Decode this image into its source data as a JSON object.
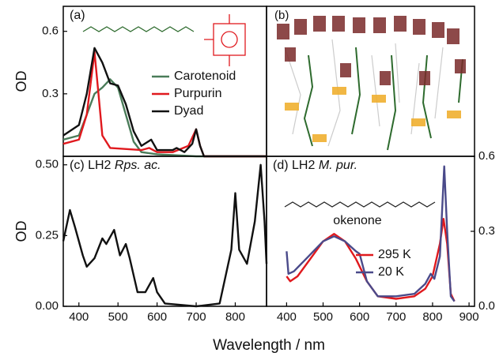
{
  "chart_data": [
    {
      "type": "line",
      "panel_label": "(a)",
      "y_label": "OD",
      "xlim": [
        360,
        880
      ],
      "ylim": [
        0,
        0.72
      ],
      "yticks": [
        0.3,
        0.6
      ],
      "legend": "center-right",
      "series": [
        {
          "name": "Carotenoid",
          "color": "#4a7c59",
          "x": [
            360,
            400,
            420,
            440,
            460,
            480,
            500,
            520,
            540,
            560,
            600,
            700,
            880
          ],
          "values": [
            0.08,
            0.1,
            0.2,
            0.3,
            0.33,
            0.37,
            0.33,
            0.2,
            0.07,
            0.02,
            0.01,
            0.0,
            0.0
          ]
        },
        {
          "name": "Purpurin",
          "color": "#e0191e",
          "x": [
            360,
            400,
            420,
            440,
            450,
            460,
            480,
            560,
            580,
            600,
            640,
            680,
            700,
            710,
            720,
            880
          ],
          "values": [
            0.06,
            0.08,
            0.2,
            0.5,
            0.3,
            0.1,
            0.04,
            0.03,
            0.04,
            0.02,
            0.02,
            0.05,
            0.13,
            0.05,
            0.0,
            0.0
          ]
        },
        {
          "name": "Dyad",
          "color": "#111111",
          "x": [
            360,
            400,
            420,
            440,
            460,
            480,
            500,
            520,
            540,
            560,
            585,
            600,
            640,
            650,
            670,
            690,
            700,
            710,
            720,
            880
          ],
          "values": [
            0.1,
            0.15,
            0.3,
            0.52,
            0.45,
            0.35,
            0.34,
            0.25,
            0.12,
            0.05,
            0.08,
            0.03,
            0.03,
            0.04,
            0.02,
            0.06,
            0.13,
            0.05,
            0.0,
            0.0
          ]
        }
      ]
    },
    {
      "type": "line",
      "panel_label": "(c) LH2",
      "species": "Rps. ac.",
      "y_label": "OD",
      "x_label": "Wavelength / nm",
      "xlim": [
        360,
        880
      ],
      "xticks": [
        400,
        500,
        600,
        700,
        800
      ],
      "ylim": [
        0,
        0.53
      ],
      "yticks": [
        {
          "value": 0,
          "label": "0.00"
        },
        0.25,
        {
          "value": 0.5,
          "label": "0.50"
        }
      ],
      "series": [
        {
          "color": "#111111",
          "x": [
            360,
            377,
            390,
            410,
            420,
            440,
            460,
            470,
            490,
            505,
            520,
            530,
            550,
            570,
            590,
            600,
            620,
            700,
            760,
            790,
            800,
            810,
            830,
            850,
            865,
            875,
            880
          ],
          "values": [
            0.23,
            0.34,
            0.28,
            0.18,
            0.14,
            0.17,
            0.24,
            0.22,
            0.27,
            0.18,
            0.22,
            0.17,
            0.05,
            0.05,
            0.1,
            0.05,
            0.01,
            0.0,
            0.01,
            0.2,
            0.4,
            0.2,
            0.15,
            0.3,
            0.5,
            0.3,
            0.15
          ]
        }
      ]
    },
    {
      "type": "line",
      "panel_label": "(d) LH2",
      "species": "M. pur.",
      "annotation": "okenone",
      "xlim": [
        345,
        915
      ],
      "xticks": [
        400,
        500,
        600,
        700,
        800,
        900
      ],
      "y2lim": [
        0,
        0.6
      ],
      "y2ticks": [
        {
          "value": 0,
          "label": "0.0"
        },
        0.3,
        0.6
      ],
      "legend": "center",
      "series": [
        {
          "name": "295 K",
          "color": "#e0191e",
          "axis": "y2",
          "x": [
            400,
            410,
            430,
            460,
            500,
            530,
            560,
            590,
            620,
            650,
            700,
            750,
            780,
            800,
            820,
            830,
            840,
            850,
            860
          ],
          "values": [
            0.12,
            0.1,
            0.12,
            0.18,
            0.26,
            0.29,
            0.26,
            0.19,
            0.1,
            0.04,
            0.03,
            0.04,
            0.07,
            0.12,
            0.25,
            0.35,
            0.25,
            0.05,
            0.02
          ]
        },
        {
          "name": "20 K",
          "color": "#4a4a8a",
          "axis": "y2",
          "x": [
            400,
            405,
            420,
            460,
            500,
            530,
            560,
            590,
            600,
            620,
            650,
            700,
            750,
            780,
            795,
            805,
            820,
            832,
            840,
            850,
            860
          ],
          "values": [
            0.22,
            0.13,
            0.14,
            0.2,
            0.26,
            0.28,
            0.26,
            0.22,
            0.21,
            0.1,
            0.04,
            0.04,
            0.05,
            0.09,
            0.13,
            0.11,
            0.2,
            0.56,
            0.3,
            0.04,
            0.02
          ]
        }
      ]
    }
  ],
  "image_panel": {
    "label": "(b)"
  }
}
